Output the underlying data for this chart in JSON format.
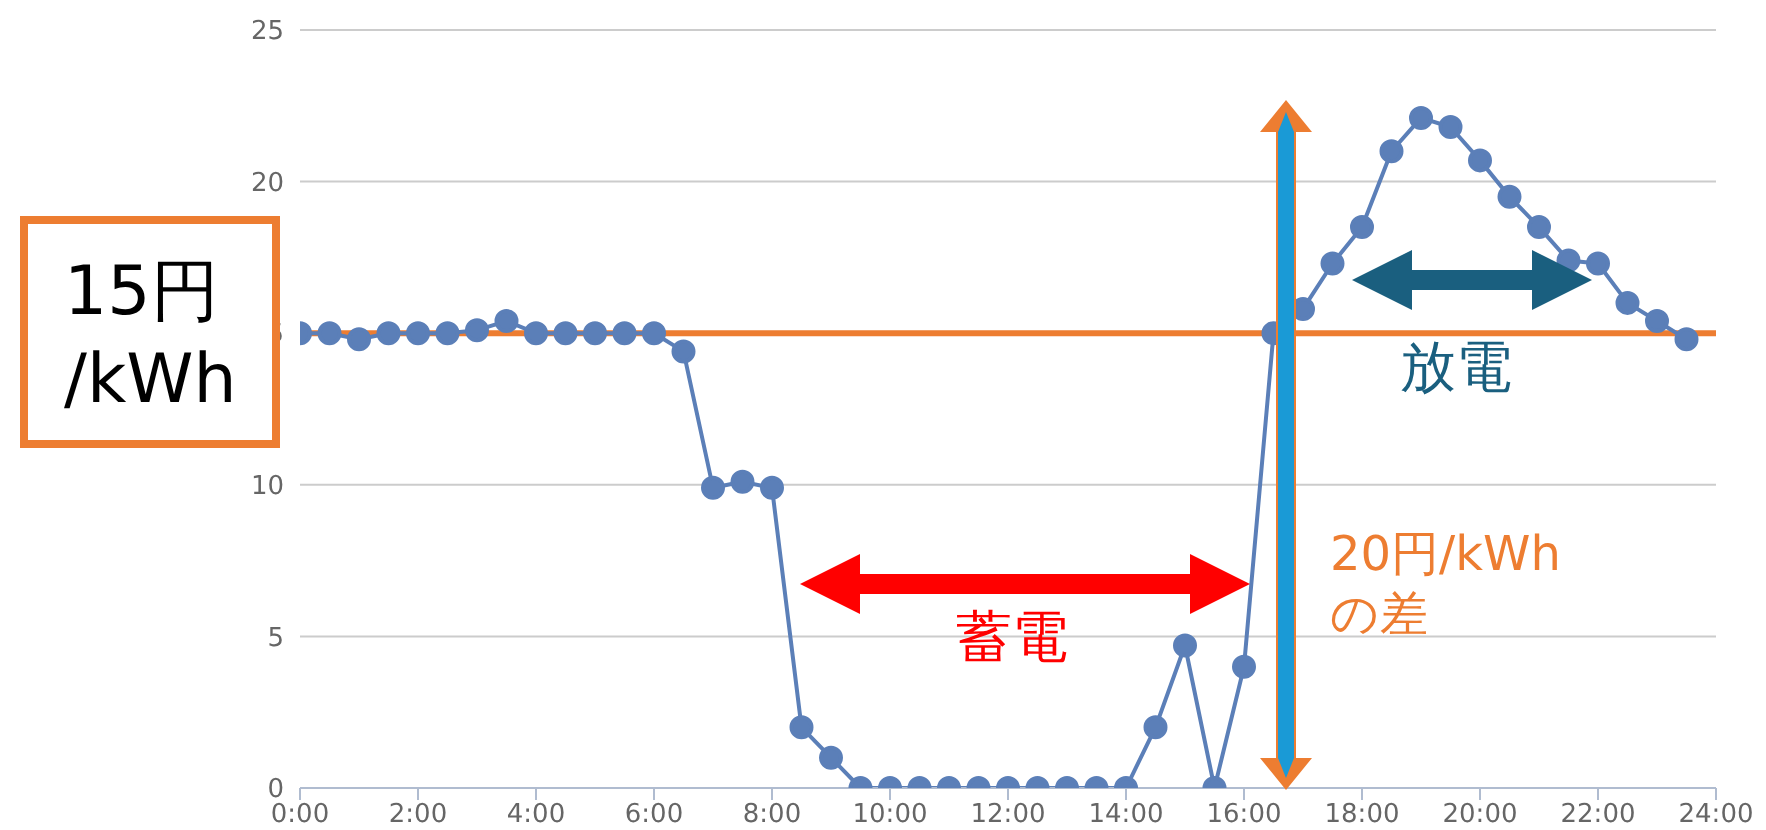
{
  "chart_data": {
    "type": "line",
    "x": [
      0,
      0.5,
      1,
      1.5,
      2,
      2.5,
      3,
      3.5,
      4,
      4.5,
      5,
      5.5,
      6,
      6.5,
      7,
      7.5,
      8,
      8.5,
      9,
      9.5,
      10,
      10.5,
      11,
      11.5,
      12,
      12.5,
      13,
      13.5,
      14,
      14.5,
      15,
      15.5,
      16,
      16.5,
      17,
      17.5,
      18,
      18.5,
      19,
      19.5,
      20,
      20.5,
      21,
      21.5,
      22,
      22.5,
      23,
      23.5
    ],
    "series": [
      {
        "color": "#5b7fb8",
        "values": [
          15.0,
          15.0,
          14.8,
          15.0,
          15.0,
          15.0,
          15.1,
          15.4,
          15.0,
          15.0,
          15.0,
          15.0,
          15.0,
          14.4,
          9.9,
          10.1,
          9.9,
          2.0,
          1.0,
          0,
          0,
          0,
          0,
          0,
          0,
          0,
          0,
          0,
          0,
          2.0,
          4.7,
          0,
          4.0,
          15.0,
          15.8,
          17.3,
          18.5,
          21.0,
          22.1,
          21.8,
          20.7,
          19.5,
          18.5,
          17.4,
          17.3,
          16.0,
          15.4,
          14.8
        ]
      }
    ],
    "xlim": [
      0,
      24
    ],
    "xticks": [
      {
        "value": 0,
        "label": "0:00"
      },
      {
        "value": 2,
        "label": "2:00"
      },
      {
        "value": 4,
        "label": "4:00"
      },
      {
        "value": 6,
        "label": "6:00"
      },
      {
        "value": 8,
        "label": "8:00"
      },
      {
        "value": 10,
        "label": "10:00"
      },
      {
        "value": 12,
        "label": "12:00"
      },
      {
        "value": 14,
        "label": "14:00"
      },
      {
        "value": 16,
        "label": "16:00"
      },
      {
        "value": 18,
        "label": "18:00"
      },
      {
        "value": 20,
        "label": "20:00"
      },
      {
        "value": 22,
        "label": "22:00"
      },
      {
        "value": 24,
        "label": "24:00"
      }
    ],
    "ylim": [
      0,
      25
    ],
    "yticks": [
      0,
      5,
      10,
      15,
      20,
      25
    ],
    "grid": "y",
    "marker": "circle",
    "line_style": "solid",
    "ref_lines": [
      {
        "axis": "y",
        "value": 15,
        "label": "15円\n/kWh",
        "color": "#ed7d31"
      }
    ],
    "annotations": [
      "蓄電",
      "放電",
      "20円/kWh\nの差"
    ]
  }
}
